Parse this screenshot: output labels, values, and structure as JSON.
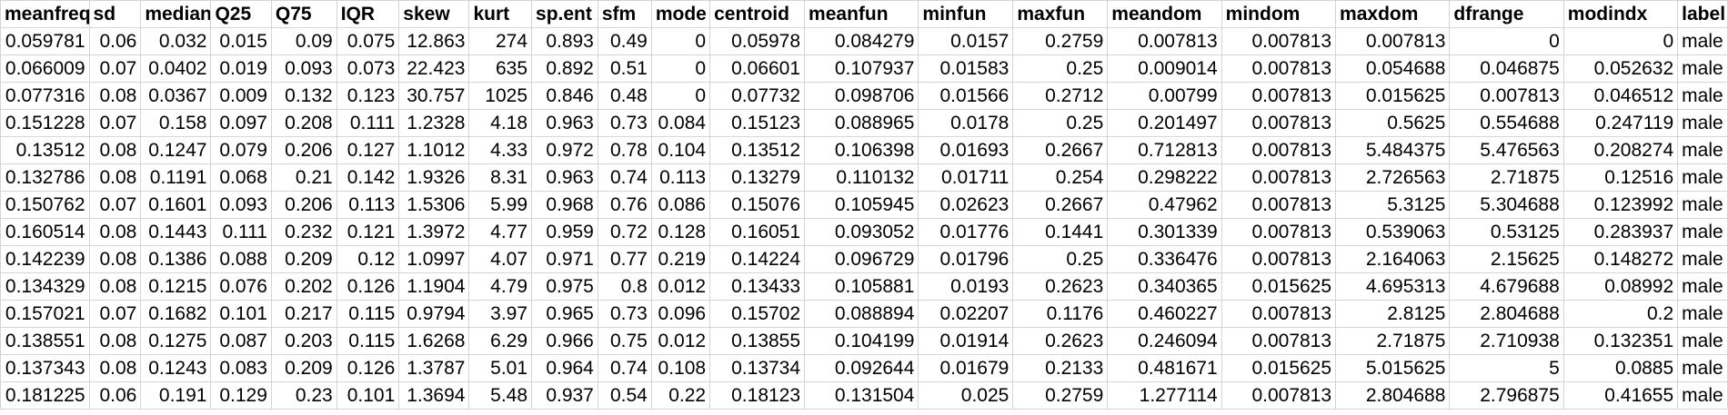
{
  "sheet": {
    "columns": [
      "meanfreq",
      "sd",
      "median",
      "Q25",
      "Q75",
      "IQR",
      "skew",
      "kurt",
      "sp.ent",
      "sfm",
      "mode",
      "centroid",
      "meanfun",
      "minfun",
      "maxfun",
      "meandom",
      "mindom",
      "maxdom",
      "dfrange",
      "modindx",
      "label"
    ],
    "rows": [
      [
        "0.059781",
        "0.06",
        "0.032",
        "0.015",
        "0.09",
        "0.075",
        "12.863",
        "274",
        "0.893",
        "0.49",
        "0",
        "0.05978",
        "0.084279",
        "0.0157",
        "0.2759",
        "0.007813",
        "0.007813",
        "0.007813",
        "0",
        "0",
        "male"
      ],
      [
        "0.066009",
        "0.07",
        "0.0402",
        "0.019",
        "0.093",
        "0.073",
        "22.423",
        "635",
        "0.892",
        "0.51",
        "0",
        "0.06601",
        "0.107937",
        "0.01583",
        "0.25",
        "0.009014",
        "0.007813",
        "0.054688",
        "0.046875",
        "0.052632",
        "male"
      ],
      [
        "0.077316",
        "0.08",
        "0.0367",
        "0.009",
        "0.132",
        "0.123",
        "30.757",
        "1025",
        "0.846",
        "0.48",
        "0",
        "0.07732",
        "0.098706",
        "0.01566",
        "0.2712",
        "0.00799",
        "0.007813",
        "0.015625",
        "0.007813",
        "0.046512",
        "male"
      ],
      [
        "0.151228",
        "0.07",
        "0.158",
        "0.097",
        "0.208",
        "0.111",
        "1.2328",
        "4.18",
        "0.963",
        "0.73",
        "0.084",
        "0.15123",
        "0.088965",
        "0.0178",
        "0.25",
        "0.201497",
        "0.007813",
        "0.5625",
        "0.554688",
        "0.247119",
        "male"
      ],
      [
        "0.13512",
        "0.08",
        "0.1247",
        "0.079",
        "0.206",
        "0.127",
        "1.1012",
        "4.33",
        "0.972",
        "0.78",
        "0.104",
        "0.13512",
        "0.106398",
        "0.01693",
        "0.2667",
        "0.712813",
        "0.007813",
        "5.484375",
        "5.476563",
        "0.208274",
        "male"
      ],
      [
        "0.132786",
        "0.08",
        "0.1191",
        "0.068",
        "0.21",
        "0.142",
        "1.9326",
        "8.31",
        "0.963",
        "0.74",
        "0.113",
        "0.13279",
        "0.110132",
        "0.01711",
        "0.254",
        "0.298222",
        "0.007813",
        "2.726563",
        "2.71875",
        "0.12516",
        "male"
      ],
      [
        "0.150762",
        "0.07",
        "0.1601",
        "0.093",
        "0.206",
        "0.113",
        "1.5306",
        "5.99",
        "0.968",
        "0.76",
        "0.086",
        "0.15076",
        "0.105945",
        "0.02623",
        "0.2667",
        "0.47962",
        "0.007813",
        "5.3125",
        "5.304688",
        "0.123992",
        "male"
      ],
      [
        "0.160514",
        "0.08",
        "0.1443",
        "0.111",
        "0.232",
        "0.121",
        "1.3972",
        "4.77",
        "0.959",
        "0.72",
        "0.128",
        "0.16051",
        "0.093052",
        "0.01776",
        "0.1441",
        "0.301339",
        "0.007813",
        "0.539063",
        "0.53125",
        "0.283937",
        "male"
      ],
      [
        "0.142239",
        "0.08",
        "0.1386",
        "0.088",
        "0.209",
        "0.12",
        "1.0997",
        "4.07",
        "0.971",
        "0.77",
        "0.219",
        "0.14224",
        "0.096729",
        "0.01796",
        "0.25",
        "0.336476",
        "0.007813",
        "2.164063",
        "2.15625",
        "0.148272",
        "male"
      ],
      [
        "0.134329",
        "0.08",
        "0.1215",
        "0.076",
        "0.202",
        "0.126",
        "1.1904",
        "4.79",
        "0.975",
        "0.8",
        "0.012",
        "0.13433",
        "0.105881",
        "0.0193",
        "0.2623",
        "0.340365",
        "0.015625",
        "4.695313",
        "4.679688",
        "0.08992",
        "male"
      ],
      [
        "0.157021",
        "0.07",
        "0.1682",
        "0.101",
        "0.217",
        "0.115",
        "0.9794",
        "3.97",
        "0.965",
        "0.73",
        "0.096",
        "0.15702",
        "0.088894",
        "0.02207",
        "0.1176",
        "0.460227",
        "0.007813",
        "2.8125",
        "2.804688",
        "0.2",
        "male"
      ],
      [
        "0.138551",
        "0.08",
        "0.1275",
        "0.087",
        "0.203",
        "0.115",
        "1.6268",
        "6.29",
        "0.966",
        "0.75",
        "0.012",
        "0.13855",
        "0.104199",
        "0.01914",
        "0.2623",
        "0.246094",
        "0.007813",
        "2.71875",
        "2.710938",
        "0.132351",
        "male"
      ],
      [
        "0.137343",
        "0.08",
        "0.1243",
        "0.083",
        "0.209",
        "0.126",
        "1.3787",
        "5.01",
        "0.964",
        "0.74",
        "0.108",
        "0.13734",
        "0.092644",
        "0.01679",
        "0.2133",
        "0.481671",
        "0.015625",
        "5.015625",
        "5",
        "0.0885",
        "male"
      ],
      [
        "0.181225",
        "0.06",
        "0.191",
        "0.129",
        "0.23",
        "0.101",
        "1.3694",
        "5.48",
        "0.937",
        "0.54",
        "0.22",
        "0.18123",
        "0.131504",
        "0.025",
        "0.2759",
        "1.277114",
        "0.007813",
        "2.804688",
        "2.796875",
        "0.41655",
        "male"
      ]
    ]
  }
}
